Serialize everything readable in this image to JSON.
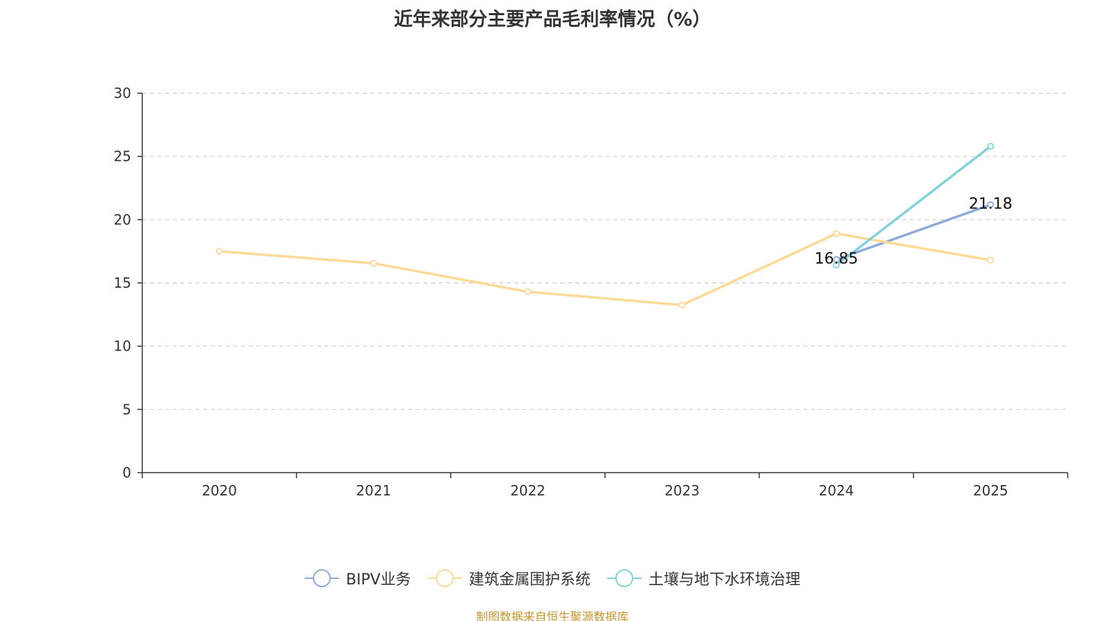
{
  "chart_data": {
    "type": "line",
    "title": "近年来部分主要产品毛利率情况（%）",
    "categories": [
      "2020",
      "2021",
      "2022",
      "2023",
      "2024",
      "2025"
    ],
    "xlabel": "",
    "ylabel": "",
    "ylim": [
      0,
      30
    ],
    "yticks": [
      "0",
      "5",
      "10",
      "15",
      "20",
      "25",
      "30"
    ],
    "grid": true,
    "legend_position": "bottom-center",
    "series": [
      {
        "name": "BIPV业务",
        "color": "#8eaad9",
        "values": [
          null,
          null,
          null,
          null,
          16.85,
          21.18
        ],
        "labels": [
          "",
          "",
          "",
          "",
          "16.85",
          "21.18"
        ]
      },
      {
        "name": "建筑金属围护系统",
        "color": "#fcd995",
        "values": [
          17.5,
          16.55,
          14.3,
          13.25,
          18.9,
          16.8
        ],
        "labels": [
          "",
          "",
          "",
          "",
          "",
          ""
        ]
      },
      {
        "name": "土壤与地下水环境治理",
        "color": "#7fd3d8",
        "values": [
          null,
          null,
          null,
          null,
          16.4,
          25.8
        ],
        "labels": [
          "",
          "",
          "",
          "",
          "",
          ""
        ]
      }
    ],
    "source": "制图数据来自恒生聚源数据库"
  }
}
